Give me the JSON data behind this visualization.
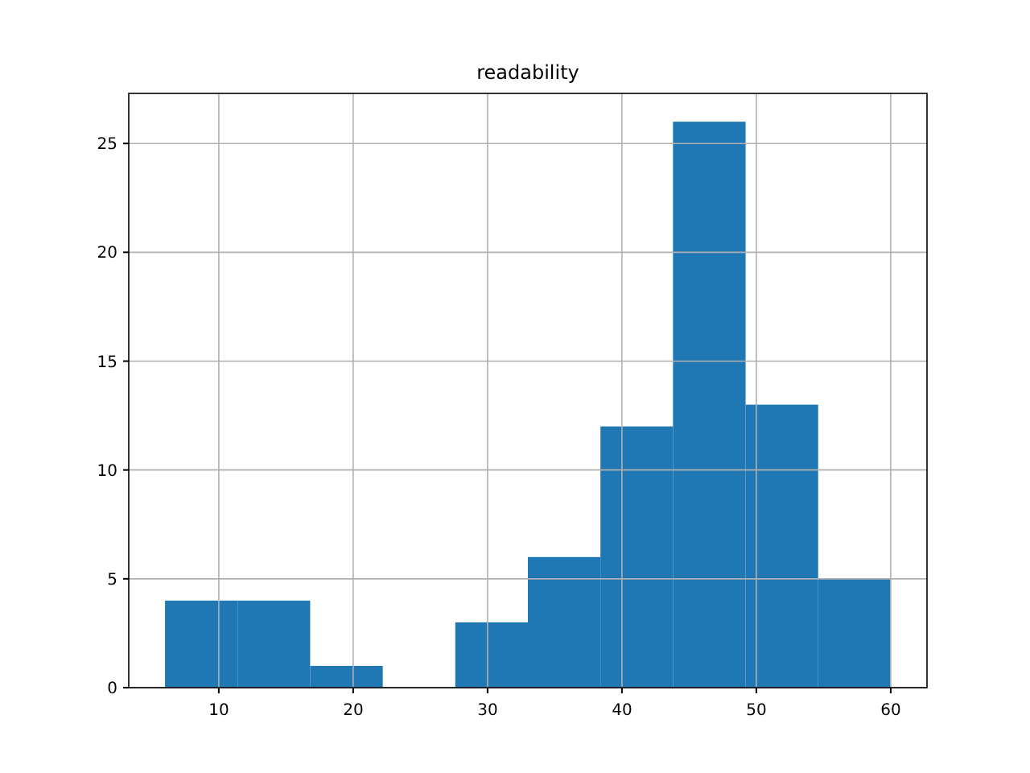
{
  "chart_data": {
    "type": "histogram",
    "title": "readability",
    "bins": [
      6,
      11.4,
      16.8,
      22.2,
      27.6,
      33,
      38.4,
      43.8,
      49.2,
      54.6,
      60
    ],
    "values": [
      4,
      4,
      1,
      0,
      3,
      6,
      12,
      26,
      13,
      5
    ],
    "color": "#1f77b4",
    "xlim": [
      3.3,
      62.7
    ],
    "ylim": [
      0,
      27.3
    ],
    "xticks": [
      10,
      20,
      30,
      40,
      50,
      60
    ],
    "yticks": [
      0,
      5,
      10,
      15,
      20,
      25
    ],
    "grid": true
  }
}
